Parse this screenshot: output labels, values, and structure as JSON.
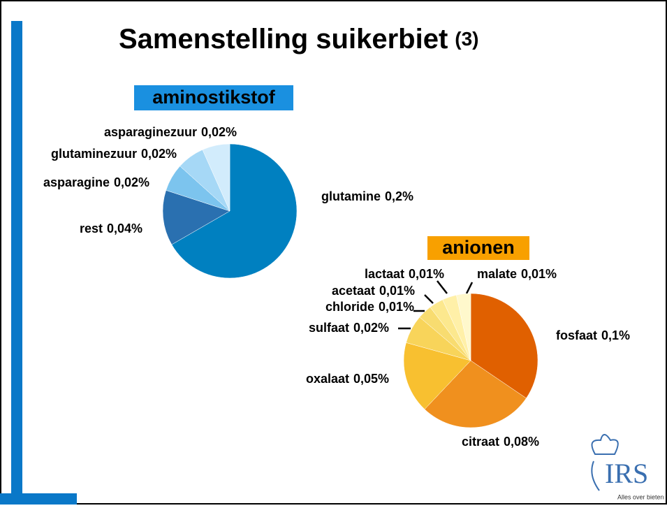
{
  "slide": {
    "title": "Samenstelling suikerbiet",
    "title_number": "(3)"
  },
  "logo": {
    "name": "IRS",
    "tagline": "Alles over bieten"
  },
  "chart_data": [
    {
      "type": "pie",
      "title": "aminostikstof",
      "title_color": "#1a90e0",
      "categories": [
        "glutamine",
        "rest",
        "asparagine",
        "glutaminezuur",
        "asparaginezuur"
      ],
      "values": [
        0.2,
        0.04,
        0.02,
        0.02,
        0.02
      ],
      "value_labels": [
        "0,2%",
        "0,04%",
        "0,02%",
        "0,02%",
        "0,02%"
      ],
      "colors": [
        "#0080c0",
        "#2a70b0",
        "#7cc4ee",
        "#a6d8f6",
        "#d2ecfc"
      ]
    },
    {
      "type": "pie",
      "title": "anionen",
      "title_color": "#f8a000",
      "categories": [
        "fosfaat",
        "citraat",
        "oxalaat",
        "sulfaat",
        "chloride",
        "acetaat",
        "lactaat",
        "malate"
      ],
      "values": [
        0.1,
        0.08,
        0.05,
        0.02,
        0.01,
        0.01,
        0.01,
        0.01
      ],
      "value_labels": [
        "0,1%",
        "0,08%",
        "0,05%",
        "0,02%",
        "0,01%",
        "0,01%",
        "0,01%",
        "0,01%"
      ],
      "colors": [
        "#e06000",
        "#f0901e",
        "#f8c030",
        "#f8d45a",
        "#f8dc70",
        "#fce88e",
        "#fff0a8",
        "#fff8cc"
      ]
    }
  ]
}
